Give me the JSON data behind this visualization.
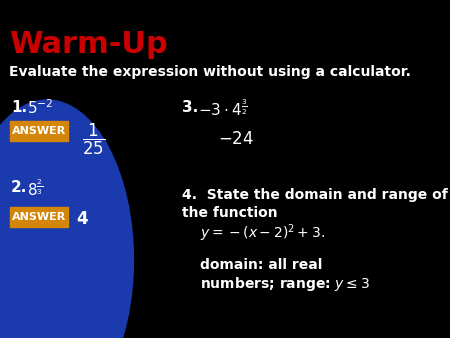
{
  "title": "Warm-Up",
  "title_color": "#cc0000",
  "bg_color": "#000000",
  "blue_ellipse_color": "#1a3aad",
  "text_color": "#ffffff",
  "answer_box_color": "#d4860a",
  "answer_text_color": "#ffffff",
  "subtitle": "Evaluate the expression without using a calculator.",
  "q1_label": "1.",
  "q1_expr": "$5^{-2}$",
  "q1_answer_label": "ANSWER",
  "q1_answer": "$\\dfrac{1}{25}$",
  "q2_label": "2.",
  "q2_expr": "$8^{\\frac{2}{3}}$",
  "q2_answer_label": "ANSWER",
  "q2_answer": "4",
  "q3_label": "3.",
  "q3_expr": "$-3 \\cdot 4^{\\frac{3}{2}}$",
  "q3_answer": "$-24$",
  "q4_label": "4.",
  "q4_text1": "State the domain and range of",
  "q4_text2": "the function",
  "q4_func": "$y = -(x-2)^2 + 3.$",
  "q4_answer": "domain: all real\nnumbers; range: $y \\leq 3$"
}
